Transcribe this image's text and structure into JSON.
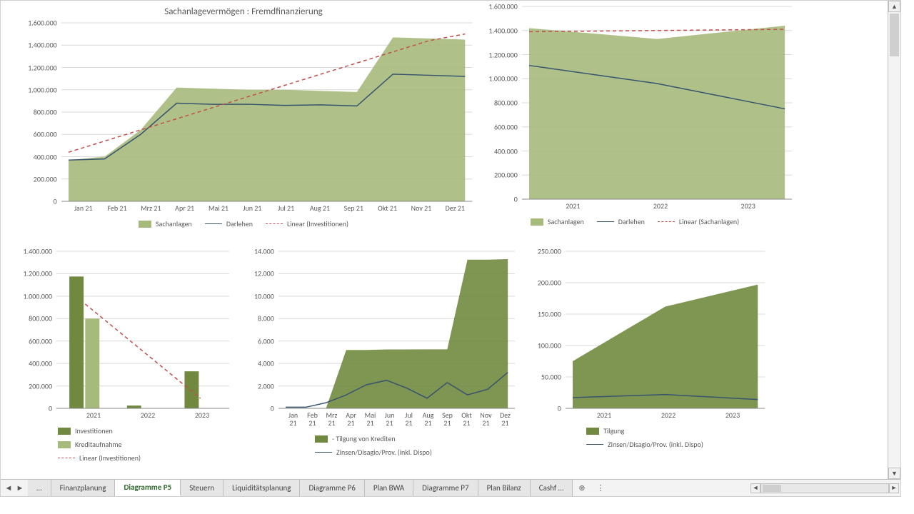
{
  "chart_top_left": {
    "type": "area-line",
    "title": "Sachanlagevermögen : Fremdfinanzierung",
    "categories": [
      "Jan 21",
      "Feb 21",
      "Mrz 21",
      "Apr 21",
      "Mai 21",
      "Jun 21",
      "Jul 21",
      "Aug 21",
      "Sep 21",
      "Okt 21",
      "Nov 21",
      "Dez 21"
    ],
    "series": {
      "sachanlagen": {
        "label": "Sachanlagen",
        "values": [
          370000,
          400000,
          640000,
          1020000,
          1010000,
          1000000,
          1000000,
          990000,
          980000,
          1470000,
          1460000,
          1450000
        ],
        "color": "#a6ba7c"
      },
      "darlehen": {
        "label": "Darlehen",
        "values": [
          370000,
          380000,
          600000,
          880000,
          870000,
          870000,
          860000,
          865000,
          855000,
          1140000,
          1130000,
          1120000
        ],
        "color": "#38546d"
      },
      "linear": {
        "label": "Linear (Investitionen)",
        "values": [
          440000,
          540000,
          640000,
          740000,
          840000,
          940000,
          1040000,
          1140000,
          1240000,
          1340000,
          1440000,
          1500000
        ],
        "color": "#c0504d"
      }
    },
    "y": {
      "min": 0,
      "max": 1600000,
      "ticks": [
        0,
        200000,
        400000,
        600000,
        800000,
        1000000,
        1200000,
        1400000,
        1600000
      ]
    },
    "grid_color": "#d9d9d9",
    "title_fontsize": 13
  },
  "chart_top_right": {
    "type": "area-line",
    "categories": [
      "2021",
      "2022",
      "2023"
    ],
    "series": {
      "sachanlagen": {
        "label": "Sachanlagen",
        "values": [
          1420000,
          1330000,
          1440000
        ],
        "color": "#a6ba7c"
      },
      "darlehen": {
        "label": "Darlehen",
        "values": [
          1110000,
          960000,
          750000
        ],
        "color": "#38546d"
      },
      "linear": {
        "label": "Linear (Sachanlagen)",
        "values": [
          1390000,
          1400000,
          1410000
        ],
        "color": "#c0504d"
      }
    },
    "y": {
      "min": 0,
      "max": 1600000,
      "ticks": [
        0,
        200000,
        400000,
        600000,
        800000,
        1000000,
        1200000,
        1400000,
        1600000
      ]
    },
    "grid_color": "#d9d9d9"
  },
  "chart_bottom_left": {
    "type": "bar",
    "categories": [
      "2021",
      "2022",
      "2023"
    ],
    "series": {
      "investitionen": {
        "label": "Investitionen",
        "values": [
          1175000,
          25000,
          330000
        ],
        "color": "#71893f"
      },
      "kreditaufnahme": {
        "label": "Kreditaufnahme",
        "values": [
          800000,
          0,
          0
        ],
        "color": "#a6ba7c"
      },
      "linear": {
        "label": "Linear (Investitionen)",
        "values": [
          930000,
          510000,
          90000
        ],
        "color": "#c0504d"
      }
    },
    "y": {
      "min": 0,
      "max": 1400000,
      "ticks": [
        0,
        200000,
        400000,
        600000,
        800000,
        1000000,
        1200000,
        1400000
      ]
    },
    "grid_color": "#d9d9d9",
    "bar_group_width": 0.55
  },
  "chart_bottom_mid": {
    "type": "area-line",
    "categories": [
      "Jan 21",
      "Feb 21",
      "Mrz 21",
      "Apr 21",
      "Mai 21",
      "Jun 21",
      "Jul 21",
      "Aug 21",
      "Sep 21",
      "Okt 21",
      "Nov 21",
      "Dez 21"
    ],
    "series": {
      "tilgung": {
        "label": "- Tilgung von Krediten",
        "values": [
          0,
          0,
          0,
          5200,
          5200,
          5250,
          5250,
          5260,
          5260,
          13250,
          13250,
          13300
        ],
        "color": "#71893f"
      },
      "zinsen": {
        "label": "Zinsen/Disagio/Prov. (inkl. Dispo)",
        "values": [
          100,
          100,
          500,
          1200,
          2100,
          2500,
          1800,
          900,
          2300,
          1200,
          1700,
          3200
        ],
        "color": "#38546d"
      }
    },
    "y": {
      "min": 0,
      "max": 14000,
      "ticks": [
        0,
        2000,
        4000,
        6000,
        8000,
        10000,
        12000,
        14000
      ]
    },
    "grid_color": "#d9d9d9"
  },
  "chart_bottom_right": {
    "type": "area-line",
    "categories": [
      "2021",
      "2022",
      "2023"
    ],
    "series": {
      "tilgung": {
        "label": "Tilgung",
        "values": [
          75000,
          162000,
          197000
        ],
        "color": "#71893f"
      },
      "zinsen": {
        "label": "Zinsen/Disagio/Prov. (inkl. Dispo)",
        "values": [
          17000,
          22000,
          14000
        ],
        "color": "#38546d"
      }
    },
    "y": {
      "min": 0,
      "max": 250000,
      "ticks": [
        0,
        50000,
        100000,
        150000,
        200000,
        250000
      ]
    },
    "grid_color": "#d9d9d9"
  },
  "tabs": {
    "items": [
      "Finanzplanung",
      "Diagramme P5",
      "Steuern",
      "Liquiditätsplanung",
      "Diagramme P6",
      "Plan BWA",
      "Diagramme P7",
      "Plan Bilanz",
      "Cashf …"
    ],
    "active_index": 1,
    "ellipsis": "…"
  },
  "axis_format": {
    "thousand_sep": ".",
    "decimal_sep": ","
  }
}
